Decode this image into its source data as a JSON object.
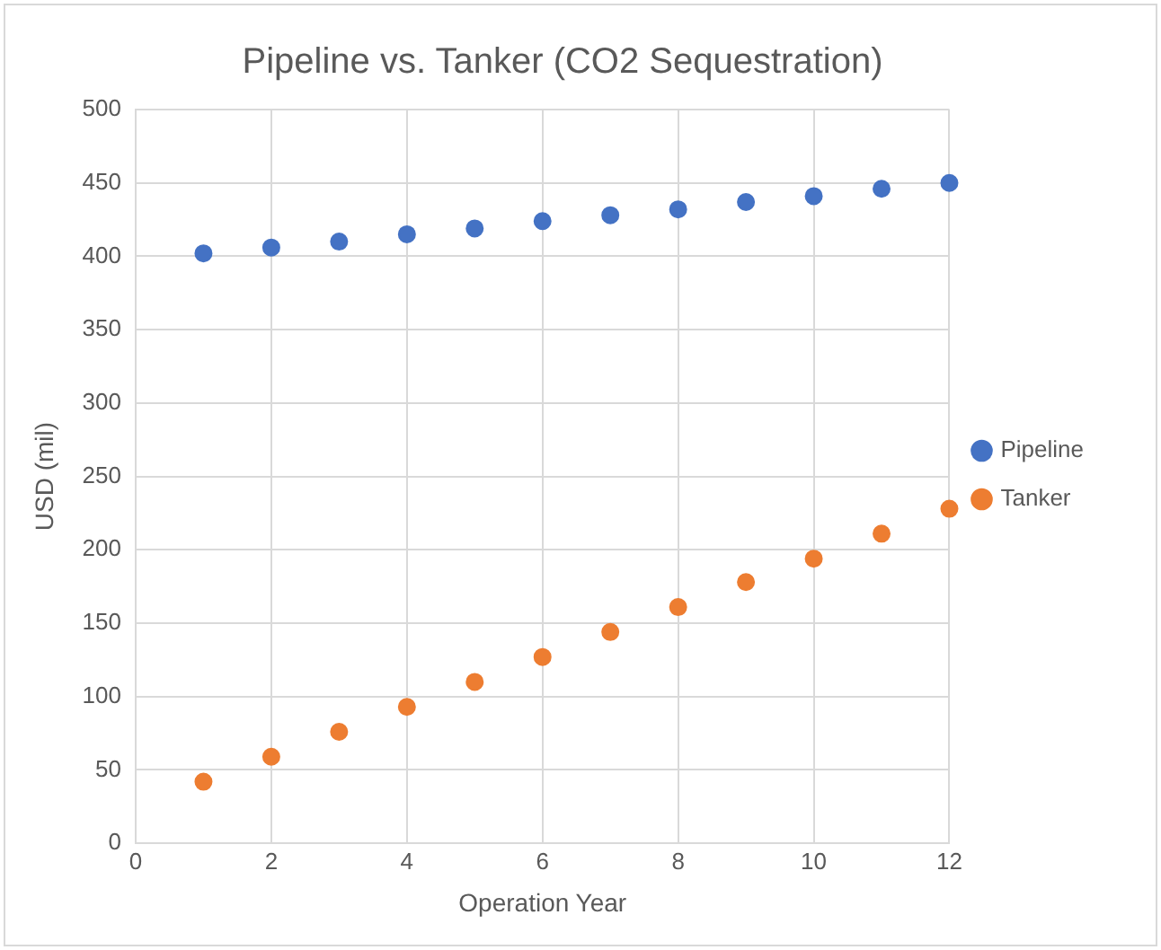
{
  "chart_data": {
    "type": "scatter",
    "title": "Pipeline vs. Tanker (CO2 Sequestration)",
    "xlabel": "Operation Year",
    "ylabel": "USD (mil)",
    "x": [
      1,
      2,
      3,
      4,
      5,
      6,
      7,
      8,
      9,
      10,
      11,
      12
    ],
    "series": [
      {
        "name": "Pipeline",
        "color": "#4472c4",
        "values": [
          402,
          406,
          410,
          415,
          419,
          424,
          428,
          432,
          437,
          441,
          446,
          450
        ]
      },
      {
        "name": "Tanker",
        "color": "#ed7d31",
        "values": [
          42,
          59,
          76,
          93,
          110,
          127,
          144,
          161,
          178,
          194,
          211,
          228
        ]
      }
    ],
    "xlim": [
      0,
      12
    ],
    "xticks": [
      0,
      2,
      4,
      6,
      8,
      10,
      12
    ],
    "ylim": [
      0,
      500
    ],
    "yticks": [
      0,
      50,
      100,
      150,
      200,
      250,
      300,
      350,
      400,
      450,
      500
    ],
    "grid": true,
    "legend": "right",
    "marker": "circle"
  }
}
